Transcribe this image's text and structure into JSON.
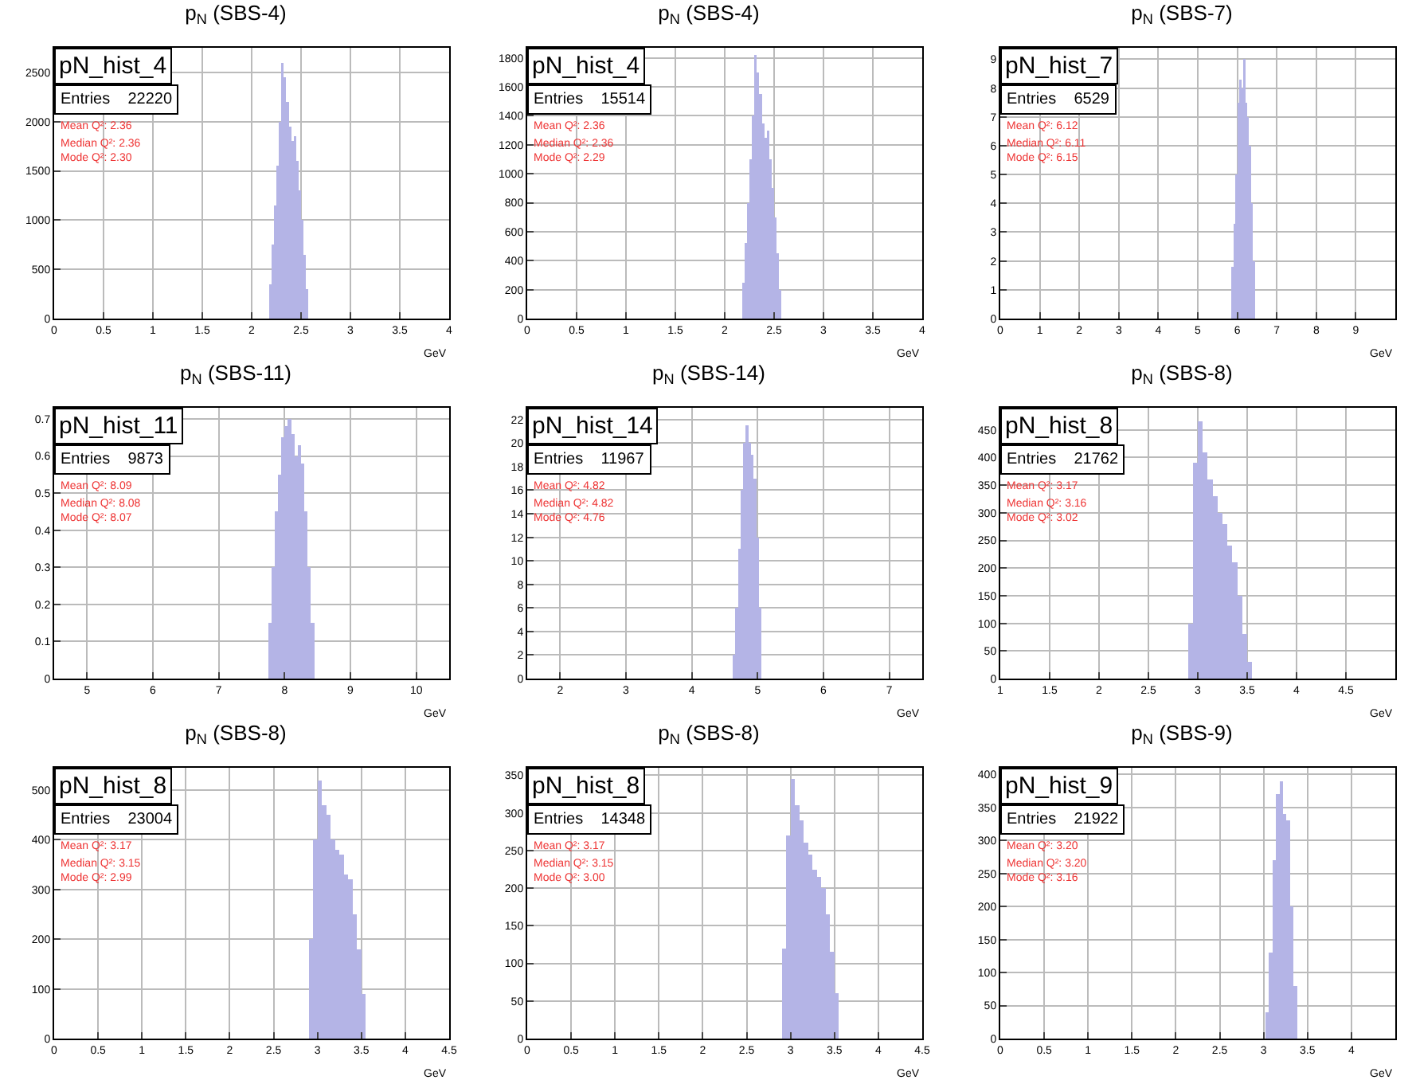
{
  "chart_data": [
    {
      "type": "histogram",
      "title": "p$_{N}$ (SBS-4)",
      "xlabel": "GeV",
      "annotations": [
        "pN_hist_4",
        "Entries    22220",
        "Mean Q²: 2.36",
        "Median Q²: 2.36",
        "Mode Q²: 2.30"
      ],
      "color": "#b4b4e6",
      "bins": [
        2.175,
        2.2,
        2.225,
        2.25,
        2.275,
        2.3,
        2.325,
        2.35,
        2.375,
        2.4,
        2.425,
        2.45,
        2.475,
        2.5,
        2.525,
        2.55,
        2.575
      ],
      "values": [
        350,
        750,
        1150,
        1550,
        2000,
        2600,
        2450,
        2200,
        1950,
        1800,
        1850,
        1600,
        1300,
        1000,
        650,
        300
      ],
      "xlim": [
        0,
        4
      ],
      "xticks": [
        0,
        0.5,
        1,
        1.5,
        2,
        2.5,
        3,
        3.5,
        4
      ],
      "ylim": [
        0,
        2750
      ],
      "yticks": [
        0,
        500,
        1000,
        1500,
        2000,
        2500
      ],
      "grid": true
    },
    {
      "type": "histogram",
      "title": "p$_{N}$ (SBS-4)",
      "xlabel": "GeV",
      "annotations": [
        "pN_hist_4",
        "Entries    15514",
        "Mean Q²: 2.36",
        "Median Q²: 2.36",
        "Mode Q²: 2.29"
      ],
      "color": "#b4b4e6",
      "bins": [
        2.175,
        2.2,
        2.225,
        2.25,
        2.275,
        2.3,
        2.325,
        2.35,
        2.375,
        2.4,
        2.425,
        2.45,
        2.475,
        2.5,
        2.525,
        2.55,
        2.575
      ],
      "values": [
        250,
        520,
        800,
        1100,
        1400,
        1820,
        1700,
        1550,
        1350,
        1250,
        1300,
        1100,
        900,
        700,
        450,
        200
      ],
      "xlim": [
        0,
        4
      ],
      "xticks": [
        0,
        0.5,
        1,
        1.5,
        2,
        2.5,
        3,
        3.5,
        4
      ],
      "ylim": [
        0,
        1870
      ],
      "yticks": [
        0,
        200,
        400,
        600,
        800,
        1000,
        1200,
        1400,
        1600,
        1800
      ],
      "grid": true
    },
    {
      "type": "histogram",
      "title": "p$_{N}$ (SBS-7)",
      "xlabel": "GeV",
      "annotations": [
        "pN_hist_7",
        "Entries    6529",
        "Mean Q²: 6.12",
        "Median Q²: 6.11",
        "Mode Q²: 6.15"
      ],
      "color": "#b4b4e6",
      "bins": [
        5.85,
        5.9,
        5.95,
        6,
        6.05,
        6.1,
        6.15,
        6.2,
        6.25,
        6.3,
        6.35,
        6.4,
        6.45
      ],
      "values": [
        1.8,
        3.3,
        5,
        7.5,
        8.3,
        8,
        9,
        7.5,
        7,
        6,
        4,
        2
      ],
      "xlim": [
        0,
        10
      ],
      "xticks": [
        0,
        1,
        2,
        3,
        4,
        5,
        6,
        7,
        8,
        9
      ],
      "ylim": [
        0,
        9.4
      ],
      "yticks": [
        0,
        1,
        2,
        3,
        4,
        5,
        6,
        7,
        8,
        9
      ],
      "grid": true
    },
    {
      "type": "histogram",
      "title": "p$_{N}$ (SBS-11)",
      "xlabel": "GeV",
      "annotations": [
        "pN_hist_11",
        "Entries    9873",
        "Mean Q²: 8.09",
        "Median Q²: 8.08",
        "Mode Q²: 8.07"
      ],
      "color": "#b4b4e6",
      "bins": [
        7.75,
        7.8,
        7.85,
        7.9,
        7.95,
        8,
        8.05,
        8.1,
        8.15,
        8.2,
        8.25,
        8.3,
        8.35,
        8.4,
        8.45
      ],
      "values": [
        0.15,
        0.3,
        0.45,
        0.55,
        0.65,
        0.68,
        0.7,
        0.66,
        0.6,
        0.63,
        0.58,
        0.45,
        0.3,
        0.15
      ],
      "xlim": [
        4.5,
        10.5
      ],
      "xticks": [
        5,
        6,
        7,
        8,
        9,
        10
      ],
      "ylim": [
        0,
        0.73
      ],
      "yticks": [
        0,
        0.1,
        0.2,
        0.3,
        0.4,
        0.5,
        0.6,
        0.7
      ],
      "grid": true
    },
    {
      "type": "histogram",
      "title": "p$_{N}$ (SBS-14)",
      "xlabel": "GeV",
      "annotations": [
        "pN_hist_14",
        "Entries    11967",
        "Mean Q²: 4.82",
        "Median Q²: 4.82",
        "Mode Q²: 4.76"
      ],
      "color": "#b4b4e6",
      "bins": [
        4.62,
        4.66,
        4.7,
        4.74,
        4.78,
        4.82,
        4.86,
        4.9,
        4.94,
        4.98,
        5.02,
        5.06
      ],
      "values": [
        2,
        6,
        11,
        16,
        20,
        21.5,
        20,
        19,
        17,
        12,
        6
      ],
      "xlim": [
        1.5,
        7.5
      ],
      "xticks": [
        2,
        3,
        4,
        5,
        6,
        7
      ],
      "ylim": [
        0,
        23
      ],
      "yticks": [
        0,
        2,
        4,
        6,
        8,
        10,
        12,
        14,
        16,
        18,
        20,
        22
      ],
      "grid": true
    },
    {
      "type": "histogram",
      "title": "p$_{N}$ (SBS-8)",
      "xlabel": "GeV",
      "annotations": [
        "pN_hist_8",
        "Entries    21762",
        "Mean Q²: 3.17",
        "Median Q²: 3.16",
        "Mode Q²: 3.02"
      ],
      "color": "#b4b4e6",
      "bins": [
        2.9,
        2.95,
        3,
        3.05,
        3.1,
        3.15,
        3.2,
        3.25,
        3.3,
        3.35,
        3.4,
        3.45,
        3.5,
        3.55
      ],
      "values": [
        100,
        390,
        465,
        410,
        360,
        330,
        300,
        280,
        240,
        210,
        150,
        80,
        30
      ],
      "xlim": [
        1,
        5
      ],
      "xticks": [
        1,
        1.5,
        2,
        2.5,
        3,
        3.5,
        4,
        4.5
      ],
      "ylim": [
        0,
        490
      ],
      "yticks": [
        0,
        50,
        100,
        150,
        200,
        250,
        300,
        350,
        400,
        450
      ],
      "grid": true
    },
    {
      "type": "histogram",
      "title": "p$_{N}$ (SBS-8)",
      "xlabel": "GeV",
      "annotations": [
        "pN_hist_8",
        "Entries    23004",
        "Mean Q²: 3.17",
        "Median Q²: 3.15",
        "Mode Q²: 2.99"
      ],
      "color": "#b4b4e6",
      "bins": [
        2.9,
        2.95,
        3,
        3.05,
        3.1,
        3.15,
        3.2,
        3.25,
        3.3,
        3.35,
        3.4,
        3.45,
        3.5,
        3.55
      ],
      "values": [
        200,
        400,
        520,
        470,
        450,
        400,
        380,
        370,
        330,
        320,
        250,
        180,
        90
      ],
      "xlim": [
        0,
        4.5
      ],
      "xticks": [
        0,
        0.5,
        1,
        1.5,
        2,
        2.5,
        3,
        3.5,
        4,
        4.5
      ],
      "ylim": [
        0,
        545
      ],
      "yticks": [
        0,
        100,
        200,
        300,
        400,
        500
      ],
      "grid": true
    },
    {
      "type": "histogram",
      "title": "p$_{N}$ (SBS-8)",
      "xlabel": "GeV",
      "annotations": [
        "pN_hist_8",
        "Entries    14348",
        "Mean Q²: 3.17",
        "Median Q²: 3.15",
        "Mode Q²: 3.00"
      ],
      "color": "#b4b4e6",
      "bins": [
        2.9,
        2.95,
        3,
        3.05,
        3.1,
        3.15,
        3.2,
        3.25,
        3.3,
        3.35,
        3.4,
        3.45,
        3.5,
        3.55
      ],
      "values": [
        120,
        270,
        345,
        310,
        290,
        260,
        245,
        225,
        215,
        200,
        165,
        115,
        60
      ],
      "xlim": [
        0,
        4.5
      ],
      "xticks": [
        0,
        0.5,
        1,
        1.5,
        2,
        2.5,
        3,
        3.5,
        4,
        4.5
      ],
      "ylim": [
        0,
        360
      ],
      "yticks": [
        0,
        50,
        100,
        150,
        200,
        250,
        300,
        350
      ],
      "grid": true
    },
    {
      "type": "histogram",
      "title": "p$_{N}$ (SBS-9)",
      "xlabel": "GeV",
      "annotations": [
        "pN_hist_9",
        "Entries    21922",
        "Mean Q²: 3.20",
        "Median Q²: 3.20",
        "Mode Q²: 3.16"
      ],
      "color": "#b4b4e6",
      "bins": [
        3.02,
        3.06,
        3.1,
        3.14,
        3.18,
        3.22,
        3.26,
        3.3,
        3.34,
        3.38
      ],
      "values": [
        40,
        130,
        270,
        370,
        390,
        340,
        330,
        200,
        80
      ],
      "xlim": [
        0,
        4.5
      ],
      "xticks": [
        0,
        0.5,
        1,
        1.5,
        2,
        2.5,
        3,
        3.5,
        4
      ],
      "ylim": [
        0,
        410
      ],
      "yticks": [
        0,
        50,
        100,
        150,
        200,
        250,
        300,
        350,
        400
      ],
      "grid": true
    }
  ]
}
